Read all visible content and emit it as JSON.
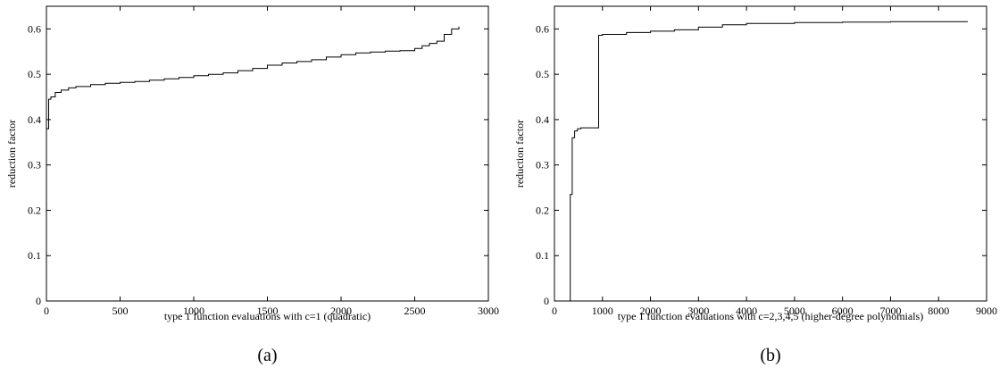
{
  "chart_data": [
    {
      "type": "line",
      "subplot_label": "(a)",
      "title": "",
      "xlabel": "type 1 function evaluations with c=1 (quadratic)",
      "ylabel": "reduction factor",
      "xlim": [
        0,
        3000
      ],
      "ylim": [
        0,
        0.65
      ],
      "xticks": [
        0,
        500,
        1000,
        1500,
        2000,
        2500,
        3000
      ],
      "yticks": [
        0,
        0.1,
        0.2,
        0.3,
        0.4,
        0.5,
        0.6
      ],
      "xtick_labels": [
        "0",
        "500",
        "1000",
        "1500",
        "2000",
        "2500",
        "3000"
      ],
      "ytick_labels": [
        "0",
        "0.1",
        "0.2",
        "0.3",
        "0.4",
        "0.5",
        "0.6"
      ],
      "grid": false,
      "step": true,
      "series": [
        {
          "x": [
            0,
            15,
            30,
            60,
            100,
            150,
            200,
            300,
            400,
            500,
            600,
            700,
            800,
            900,
            1000,
            1100,
            1200,
            1300,
            1400,
            1500,
            1600,
            1700,
            1800,
            1900,
            2000,
            2100,
            2200,
            2300,
            2400,
            2500,
            2550,
            2600,
            2650,
            2700,
            2750,
            2800
          ],
          "y": [
            0.38,
            0.445,
            0.45,
            0.46,
            0.465,
            0.47,
            0.473,
            0.477,
            0.48,
            0.482,
            0.484,
            0.487,
            0.49,
            0.493,
            0.497,
            0.5,
            0.503,
            0.508,
            0.513,
            0.52,
            0.525,
            0.528,
            0.532,
            0.538,
            0.543,
            0.547,
            0.549,
            0.551,
            0.552,
            0.557,
            0.563,
            0.568,
            0.573,
            0.588,
            0.6,
            0.605
          ]
        }
      ]
    },
    {
      "type": "line",
      "subplot_label": "(b)",
      "title": "",
      "xlabel": "type 1 function evaluations with c=2,3,4,5 (higher-degree polynomials)",
      "ylabel": "reduction factor",
      "xlim": [
        0,
        9000
      ],
      "ylim": [
        0,
        0.65
      ],
      "xticks": [
        0,
        1000,
        2000,
        3000,
        4000,
        5000,
        6000,
        7000,
        8000,
        9000
      ],
      "yticks": [
        0,
        0.1,
        0.2,
        0.3,
        0.4,
        0.5,
        0.6
      ],
      "xtick_labels": [
        "0",
        "1000",
        "2000",
        "3000",
        "4000",
        "5000",
        "6000",
        "7000",
        "8000",
        "9000"
      ],
      "ytick_labels": [
        "0",
        "0.1",
        "0.2",
        "0.3",
        "0.4",
        "0.5",
        "0.6"
      ],
      "grid": false,
      "step": true,
      "series": [
        {
          "x": [
            300,
            330,
            370,
            420,
            480,
            550,
            900,
            920,
            1000,
            1500,
            2000,
            2500,
            3000,
            3500,
            4000,
            5000,
            6000,
            7000,
            8000,
            8600
          ],
          "y": [
            0,
            0.235,
            0.36,
            0.375,
            0.38,
            0.382,
            0.382,
            0.586,
            0.588,
            0.592,
            0.595,
            0.598,
            0.604,
            0.609,
            0.612,
            0.614,
            0.615,
            0.616,
            0.616,
            0.617
          ]
        }
      ]
    }
  ]
}
